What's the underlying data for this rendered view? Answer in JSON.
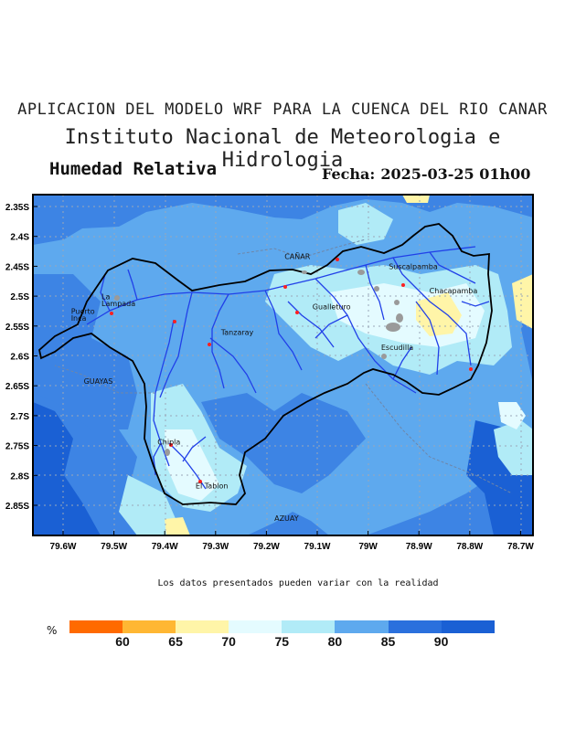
{
  "header": {
    "title": "APLICACION DEL MODELO WRF PARA LA CUENCA DEL RIO CANAR",
    "institution": "Instituto Nacional de Meteorologia e Hidrologia",
    "variable": "Humedad Relativa",
    "date_label": "Fecha:",
    "date_value": "2025-03-25 01h00"
  },
  "map": {
    "x_ticks": [
      "79.6W",
      "79.5W",
      "79.4W",
      "79.3W",
      "79.2W",
      "79.1W",
      "79W",
      "78.9W",
      "78.8W",
      "78.7W"
    ],
    "y_ticks": [
      "2.35S",
      "2.4S",
      "2.45S",
      "2.5S",
      "2.55S",
      "2.6S",
      "2.65S",
      "2.7S",
      "2.75S",
      "2.8S",
      "2.85S"
    ],
    "places": [
      {
        "name": "CAÑAR",
        "lon": -79.165,
        "lat": -2.438
      },
      {
        "name": "Suscalpamba",
        "lon": -78.96,
        "lat": -2.455
      },
      {
        "name": "Chacapamba",
        "lon": -78.88,
        "lat": -2.495
      },
      {
        "name": "Gualleturo",
        "lon": -79.11,
        "lat": -2.522
      },
      {
        "name": "La",
        "lon": -79.525,
        "lat": -2.505
      },
      {
        "name": "Lampada",
        "lon": -79.525,
        "lat": -2.517
      },
      {
        "name": "Puerto",
        "lon": -79.585,
        "lat": -2.53
      },
      {
        "name": "Inca",
        "lon": -79.585,
        "lat": -2.541
      },
      {
        "name": "Tanzaray",
        "lon": -79.29,
        "lat": -2.565
      },
      {
        "name": "Escudilla",
        "lon": -78.975,
        "lat": -2.59
      },
      {
        "name": "GUAYAS",
        "lon": -79.56,
        "lat": -2.647
      },
      {
        "name": "Chipla",
        "lon": -79.415,
        "lat": -2.748
      },
      {
        "name": "El Tablon",
        "lon": -79.34,
        "lat": -2.822
      },
      {
        "name": "AZUAY",
        "lon": -79.185,
        "lat": -2.876
      }
    ]
  },
  "note": "Los datos presentados pueden variar con la realidad",
  "colorbar": {
    "unit": "%",
    "ticks": [
      "60",
      "65",
      "70",
      "75",
      "80",
      "85",
      "90"
    ],
    "colors": [
      "#ff6a00",
      "#ffb733",
      "#fff5a8",
      "#e4fbff",
      "#b1ebf7",
      "#5ea9ee",
      "#2a70dd",
      "#1a60d4"
    ]
  },
  "field_colors": {
    "c70": "#fff5a8",
    "c75": "#e4fbff",
    "c80": "#b1ebf7",
    "c85": "#5ea9ee",
    "c90": "#3d84e4",
    "c95": "#1a60d4"
  }
}
